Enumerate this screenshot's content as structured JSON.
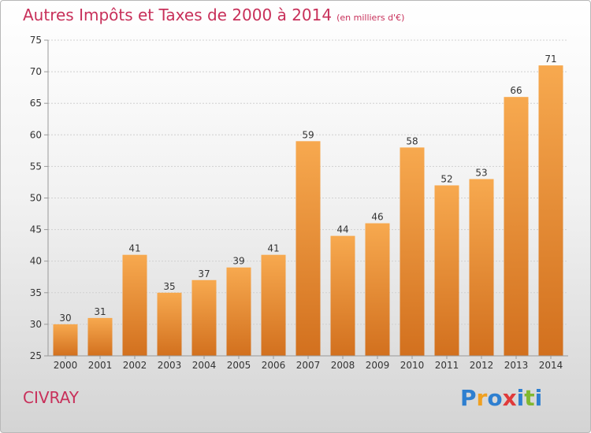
{
  "title": "Autres Impôts et Taxes de 2000 à 2014",
  "unit_label": "(en milliers d'€)",
  "commune": "CIVRAY",
  "brand": {
    "letters": [
      "P",
      "r",
      "o",
      "x",
      "i",
      "t",
      "i"
    ],
    "colors": [
      "#2e7fd0",
      "#f0a020",
      "#2e7fd0",
      "#e03a3a",
      "#2e7fd0",
      "#80b830",
      "#2e7fd0"
    ]
  },
  "colors": {
    "title": "#c8305a",
    "bar_light": "#f7a94f",
    "bar_dark": "#d2701e",
    "grid": "#cfcfcf",
    "axis": "#999999"
  },
  "chart_data": {
    "type": "bar",
    "title": "Autres Impôts et Taxes de 2000 à 2014",
    "xlabel": "",
    "ylabel": "",
    "categories": [
      "2000",
      "2001",
      "2002",
      "2003",
      "2004",
      "2005",
      "2006",
      "2007",
      "2008",
      "2009",
      "2010",
      "2011",
      "2012",
      "2013",
      "2014"
    ],
    "values": [
      30,
      31,
      41,
      35,
      37,
      39,
      41,
      59,
      44,
      46,
      58,
      52,
      53,
      66,
      71
    ],
    "ylim": [
      25,
      75
    ],
    "yticks": [
      25,
      30,
      35,
      40,
      45,
      50,
      55,
      60,
      65,
      70,
      75
    ],
    "grid": true,
    "data_labels": true
  }
}
